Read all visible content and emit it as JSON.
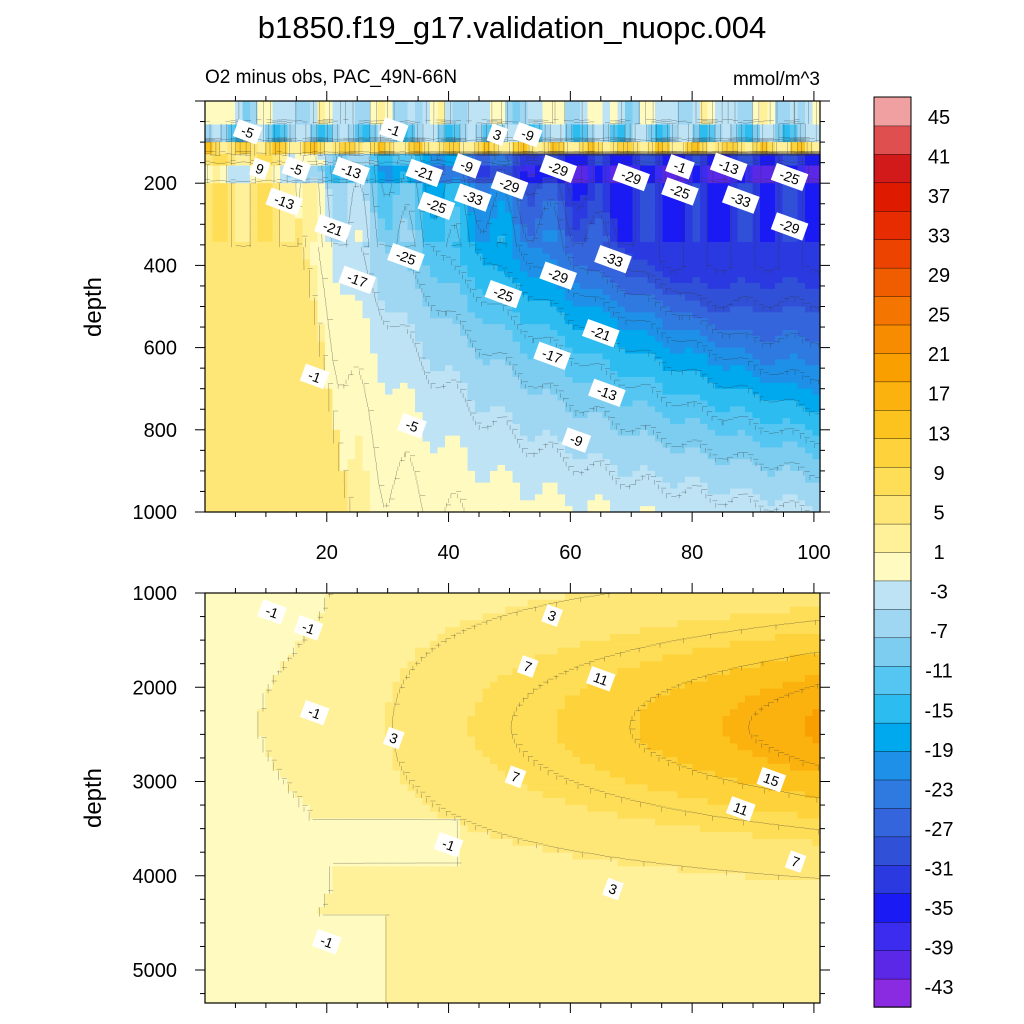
{
  "figure": {
    "title": "b1850.f19_g17.validation_nuopc.004",
    "subtitle_left": "O2 minus obs, PAC_49N-66N",
    "subtitle_right": "mmol/m^3"
  },
  "colors": {
    "palette": [
      "#8a2be2",
      "#5a28e6",
      "#3c2cf0",
      "#1a1af5",
      "#2a3ae0",
      "#3050d8",
      "#3565dc",
      "#2f7ae0",
      "#1e90e8",
      "#00a8ee",
      "#2cbcf0",
      "#55c5f2",
      "#7ccdf0",
      "#9fd6f2",
      "#bde3f5",
      "#fffbc0",
      "#fff09a",
      "#ffe777",
      "#fedd57",
      "#fdd23a",
      "#fcc21e",
      "#fbb20f",
      "#f9a000",
      "#f78c00",
      "#f47500",
      "#f05d00",
      "#ec4400",
      "#e62c00",
      "#de1a00",
      "#d21a1a",
      "#df4f4f",
      "#f0a0a0"
    ]
  },
  "chart_data": [
    {
      "type": "contour",
      "panel": "upper",
      "xlabel": "",
      "ylabel": "depth",
      "xlim": [
        0,
        101
      ],
      "ylim": [
        1000,
        0
      ],
      "x_ticks": [
        20,
        40,
        60,
        80,
        100
      ],
      "y_ticks": [
        200,
        400,
        600,
        800,
        1000
      ],
      "contour_interval": 2,
      "contour_labels": [
        {
          "text": "-5",
          "x": 7,
          "y": 75
        },
        {
          "text": "-1",
          "x": 31,
          "y": 70
        },
        {
          "text": "3",
          "x": 48,
          "y": 82
        },
        {
          "text": "-9",
          "x": 53,
          "y": 82
        },
        {
          "text": "9",
          "x": 9,
          "y": 165
        },
        {
          "text": "-5",
          "x": 15,
          "y": 165
        },
        {
          "text": "-13",
          "x": 24,
          "y": 170
        },
        {
          "text": "-21",
          "x": 36,
          "y": 175
        },
        {
          "text": "-9",
          "x": 43,
          "y": 158
        },
        {
          "text": "-29",
          "x": 58,
          "y": 165
        },
        {
          "text": "-1",
          "x": 78,
          "y": 160
        },
        {
          "text": "-13",
          "x": 86,
          "y": 160
        },
        {
          "text": "-29",
          "x": 70,
          "y": 185
        },
        {
          "text": "-25",
          "x": 96,
          "y": 185
        },
        {
          "text": "-29",
          "x": 50,
          "y": 205
        },
        {
          "text": "-33",
          "x": 44,
          "y": 235
        },
        {
          "text": "-25",
          "x": 38,
          "y": 255
        },
        {
          "text": "-25",
          "x": 78,
          "y": 220
        },
        {
          "text": "-33",
          "x": 88,
          "y": 240
        },
        {
          "text": "-29",
          "x": 96,
          "y": 305
        },
        {
          "text": "-13",
          "x": 13,
          "y": 245
        },
        {
          "text": "-21",
          "x": 21,
          "y": 310
        },
        {
          "text": "-25",
          "x": 33,
          "y": 380
        },
        {
          "text": "-33",
          "x": 67,
          "y": 385
        },
        {
          "text": "-17",
          "x": 25,
          "y": 435
        },
        {
          "text": "-29",
          "x": 58,
          "y": 425
        },
        {
          "text": "-25",
          "x": 49,
          "y": 470
        },
        {
          "text": "-21",
          "x": 65,
          "y": 565
        },
        {
          "text": "-17",
          "x": 57,
          "y": 620
        },
        {
          "text": "-1",
          "x": 18,
          "y": 670
        },
        {
          "text": "-13",
          "x": 66,
          "y": 710
        },
        {
          "text": "-5",
          "x": 34,
          "y": 790
        },
        {
          "text": "-9",
          "x": 61,
          "y": 825
        }
      ]
    },
    {
      "type": "contour",
      "panel": "lower",
      "xlabel": "",
      "ylabel": "depth",
      "xlim": [
        0,
        101
      ],
      "ylim": [
        5350,
        1000
      ],
      "x_ticks": [
        20,
        40,
        60,
        80,
        100
      ],
      "y_ticks": [
        1000,
        2000,
        3000,
        4000,
        5000
      ],
      "contour_interval": 2,
      "contour_labels": [
        {
          "text": "-1",
          "x": 11,
          "y": 1200
        },
        {
          "text": "-1",
          "x": 17,
          "y": 1370
        },
        {
          "text": "3",
          "x": 57,
          "y": 1240
        },
        {
          "text": "7",
          "x": 53,
          "y": 1780
        },
        {
          "text": "11",
          "x": 65,
          "y": 1910
        },
        {
          "text": "-1",
          "x": 18,
          "y": 2270
        },
        {
          "text": "3",
          "x": 31,
          "y": 2540
        },
        {
          "text": "7",
          "x": 51,
          "y": 2950
        },
        {
          "text": "15",
          "x": 93,
          "y": 2980
        },
        {
          "text": "11",
          "x": 88,
          "y": 3290
        },
        {
          "text": "-1",
          "x": 40,
          "y": 3670
        },
        {
          "text": "7",
          "x": 97,
          "y": 3850
        },
        {
          "text": "3",
          "x": 67,
          "y": 4140
        },
        {
          "text": "-1",
          "x": 20,
          "y": 4700
        }
      ]
    },
    {
      "type": "colorbar",
      "levels": [
        -45,
        -43,
        -41,
        -39,
        -37,
        -35,
        -33,
        -31,
        -29,
        -27,
        -25,
        -23,
        -21,
        -19,
        -17,
        -15,
        -13,
        -11,
        -9,
        -7,
        -5,
        -3,
        -1,
        1,
        3,
        5,
        7,
        9,
        11,
        13,
        15,
        17,
        19,
        21,
        23,
        25,
        27,
        29,
        31,
        33,
        35,
        37,
        39,
        41,
        43,
        45
      ],
      "tick_labels": [
        "-43",
        "-39",
        "-35",
        "-31",
        "-27",
        "-23",
        "-19",
        "-15",
        "-11",
        "-7",
        "-3",
        "1",
        "5",
        "9",
        "13",
        "17",
        "21",
        "25",
        "29",
        "33",
        "37",
        "41",
        "45"
      ]
    }
  ]
}
